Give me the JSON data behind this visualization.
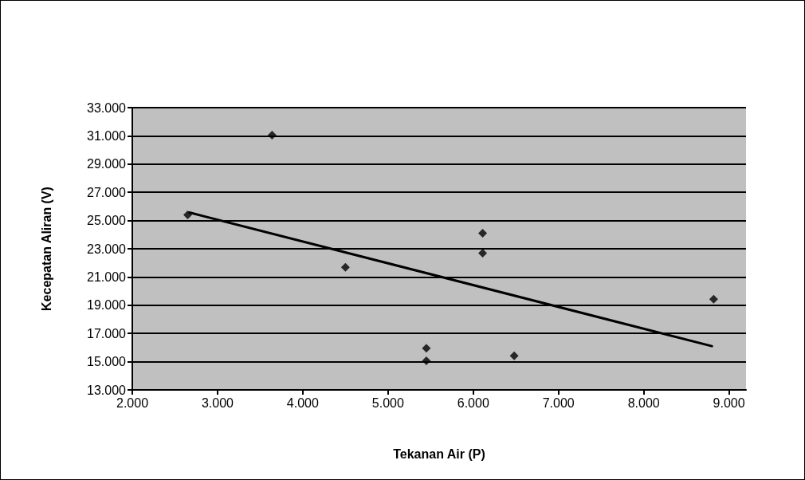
{
  "chart_data": {
    "type": "scatter",
    "xlabel": "Tekanan Air (P)",
    "ylabel": "Kecepatan Aliran (V)",
    "x": [
      2.65,
      3.64,
      4.5,
      5.45,
      5.45,
      6.11,
      6.11,
      6.48,
      8.82
    ],
    "series": [
      {
        "color": "#000000",
        "marker": "diamond",
        "values": [
          25.4,
          31.05,
          21.68,
          15.95,
          15.06,
          24.1,
          22.69,
          15.41,
          19.42
        ]
      },
      {
        "type": "line",
        "color": "#000000",
        "marker": "none",
        "line_style": "solid",
        "x": [
          2.67,
          8.8
        ],
        "values": [
          25.57,
          16.1
        ]
      }
    ],
    "xlim": [
      2,
      9.2
    ],
    "ylim": [
      13,
      33
    ],
    "xticks": [
      {
        "value": 2,
        "label": "2.000"
      },
      {
        "value": 3,
        "label": "3.000"
      },
      {
        "value": 4,
        "label": "4.000"
      },
      {
        "value": 5,
        "label": "5.000"
      },
      {
        "value": 6,
        "label": "6.000"
      },
      {
        "value": 7,
        "label": "7.000"
      },
      {
        "value": 8,
        "label": "8.000"
      },
      {
        "value": 9,
        "label": "9.000"
      }
    ],
    "yticks": [
      {
        "value": 13,
        "label": "13.000"
      },
      {
        "value": 15,
        "label": "15.000"
      },
      {
        "value": 17,
        "label": "17.000"
      },
      {
        "value": 19,
        "label": "19.000"
      },
      {
        "value": 21,
        "label": "21.000"
      },
      {
        "value": 23,
        "label": "23.000"
      },
      {
        "value": 25,
        "label": "25.000"
      },
      {
        "value": 27,
        "label": "27.000"
      },
      {
        "value": 29,
        "label": "29.000"
      },
      {
        "value": 31,
        "label": "31.000"
      },
      {
        "value": 33,
        "label": "33.000"
      }
    ],
    "grid": "y"
  }
}
